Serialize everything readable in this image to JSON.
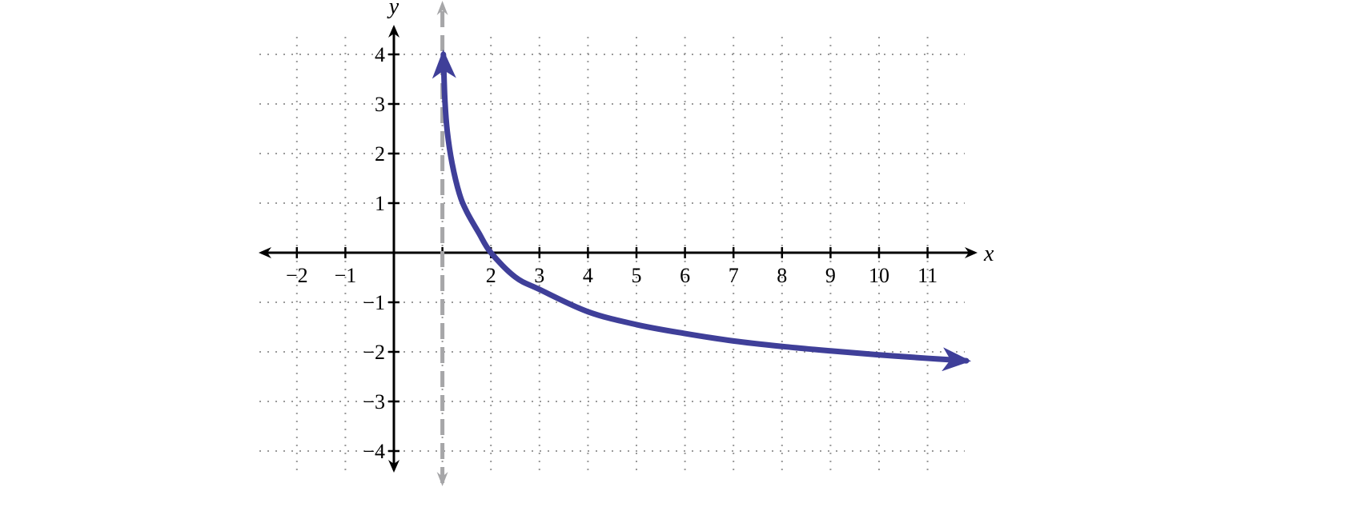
{
  "chart_data": {
    "type": "line",
    "title": "",
    "xlabel": "x",
    "ylabel": "y",
    "xlim": [
      -2.7,
      11.9
    ],
    "ylim": [
      -4.4,
      4.4
    ],
    "grid": true,
    "grid_style": "dotted",
    "x_ticks": [
      -2,
      -1,
      1,
      2,
      3,
      4,
      5,
      6,
      7,
      8,
      9,
      10,
      11
    ],
    "x_tick_labels": [
      "−2",
      "−1",
      "",
      "2",
      "3",
      "4",
      "5",
      "6",
      "7",
      "8",
      "9",
      "10",
      "11"
    ],
    "y_ticks": [
      -4,
      -3,
      -2,
      -1,
      1,
      2,
      3,
      4
    ],
    "y_tick_labels": [
      "−4",
      "−3",
      "−2",
      "−1",
      "1",
      "2",
      "3",
      "4"
    ],
    "series": [
      {
        "color": "#3f3f99",
        "x": [
          1.02,
          1.05,
          1.1,
          1.2,
          1.35,
          1.5,
          1.75,
          2,
          2.5,
          3,
          4,
          5,
          6,
          7,
          8,
          9,
          10,
          11,
          11.8
        ],
        "y": [
          4.0,
          3.1,
          2.45,
          1.8,
          1.19,
          0.83,
          0.4,
          0.0,
          -0.49,
          -0.74,
          -1.19,
          -1.45,
          -1.63,
          -1.78,
          -1.89,
          -1.98,
          -2.06,
          -2.13,
          -2.18
        ],
        "arrows": [
          "start",
          "end"
        ]
      }
    ],
    "asymptote": {
      "x": 1,
      "color": "#a6a6a8",
      "style": "dashed"
    },
    "colors": {
      "axis": "#000000",
      "grid": "#9a9a9a",
      "curve": "#3f3f99",
      "asymptote": "#a6a6a8"
    }
  }
}
